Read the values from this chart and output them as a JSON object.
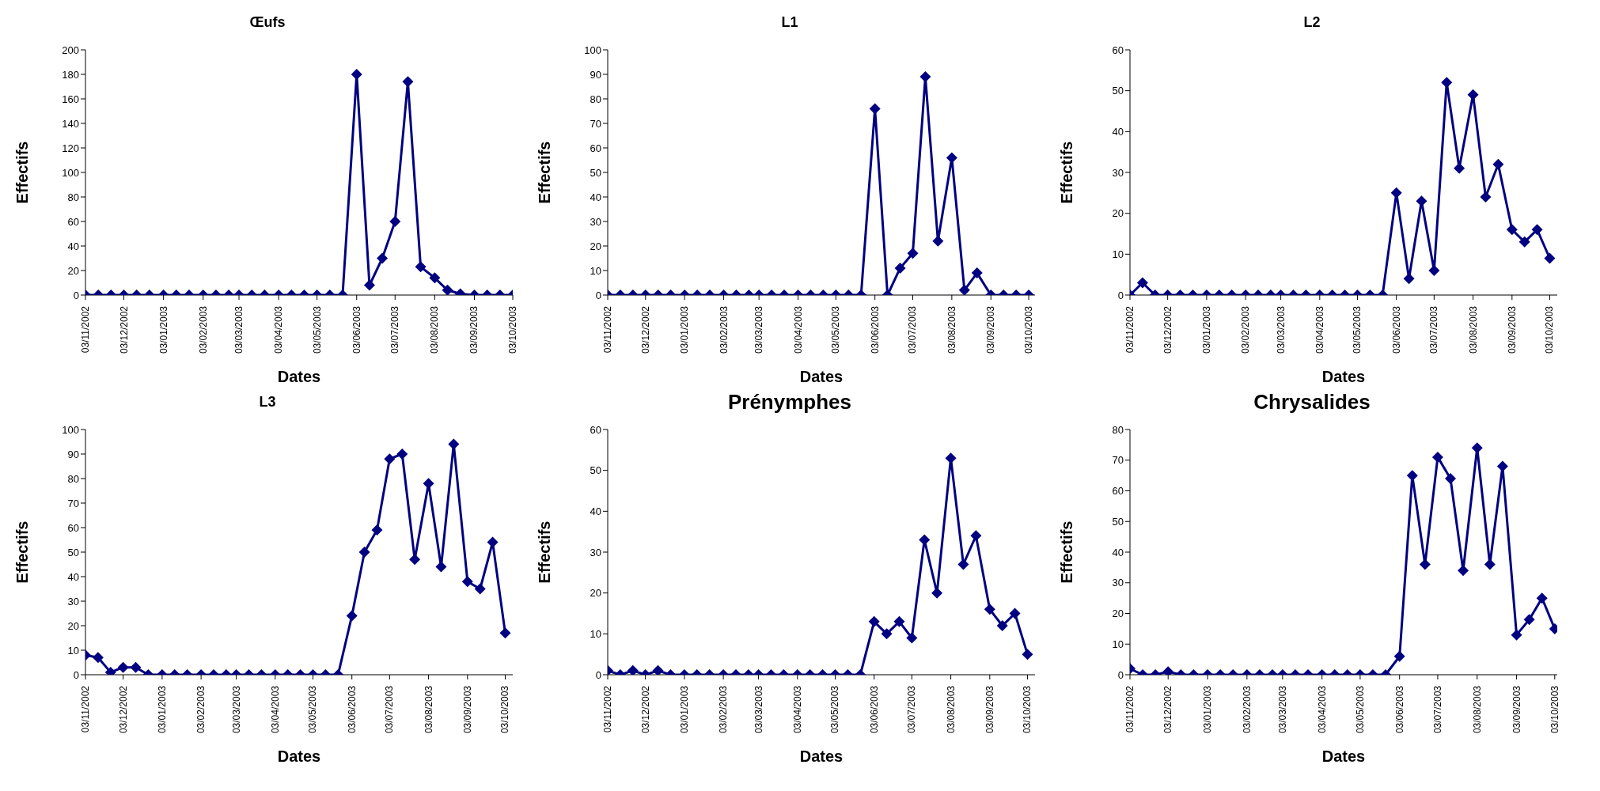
{
  "chart_data": [
    {
      "type": "line",
      "title": "Œufs",
      "xlabel": "Dates",
      "ylabel": "Effectifs",
      "color": "#000080",
      "marker": "diamond",
      "line_style": "solid",
      "grid": false,
      "legend": false,
      "x": [
        "2002-11-03",
        "2002-11-13",
        "2002-11-23",
        "2002-12-03",
        "2002-12-13",
        "2002-12-23",
        "2003-01-03",
        "2003-01-13",
        "2003-01-23",
        "2003-02-03",
        "2003-02-13",
        "2003-02-23",
        "2003-03-03",
        "2003-03-13",
        "2003-03-23",
        "2003-04-03",
        "2003-04-13",
        "2003-04-23",
        "2003-05-03",
        "2003-05-13",
        "2003-05-23",
        "2003-06-03",
        "2003-06-13",
        "2003-06-23",
        "2003-07-03",
        "2003-07-13",
        "2003-07-23",
        "2003-08-03",
        "2003-08-13",
        "2003-08-23",
        "2003-09-03",
        "2003-09-13",
        "2003-09-23",
        "2003-10-03"
      ],
      "values": [
        0,
        0,
        0,
        0,
        0,
        0,
        0,
        0,
        0,
        0,
        0,
        0,
        0,
        0,
        0,
        0,
        0,
        0,
        0,
        0,
        0,
        180,
        8,
        30,
        60,
        174,
        23,
        14,
        4,
        1,
        0,
        0,
        0,
        0
      ],
      "xlim": [
        "2002-11-03",
        "2003-10-03"
      ],
      "xticks": [
        {
          "value": "2002-11-03",
          "label": "03/11/2002"
        },
        {
          "value": "2002-12-03",
          "label": "03/12/2002"
        },
        {
          "value": "2003-01-03",
          "label": "03/01/2003"
        },
        {
          "value": "2003-02-03",
          "label": "03/02/2003"
        },
        {
          "value": "2003-03-03",
          "label": "03/03/2003"
        },
        {
          "value": "2003-04-03",
          "label": "03/04/2003"
        },
        {
          "value": "2003-05-03",
          "label": "03/05/2003"
        },
        {
          "value": "2003-06-03",
          "label": "03/06/2003"
        },
        {
          "value": "2003-07-03",
          "label": "03/07/2003"
        },
        {
          "value": "2003-08-03",
          "label": "03/08/2003"
        },
        {
          "value": "2003-09-03",
          "label": "03/09/2003"
        },
        {
          "value": "2003-10-03",
          "label": "03/10/2003"
        }
      ],
      "ylim": [
        0,
        200
      ],
      "yticks": [
        0,
        20,
        40,
        60,
        80,
        100,
        120,
        140,
        160,
        180,
        200
      ]
    },
    {
      "type": "line",
      "title": "L1",
      "xlabel": "Dates",
      "ylabel": "Effectifs",
      "color": "#000080",
      "marker": "diamond",
      "line_style": "solid",
      "grid": false,
      "legend": false,
      "x": [
        "2002-11-03",
        "2002-11-13",
        "2002-11-23",
        "2002-12-03",
        "2002-12-13",
        "2002-12-23",
        "2003-01-03",
        "2003-01-13",
        "2003-01-23",
        "2003-02-03",
        "2003-02-13",
        "2003-02-23",
        "2003-03-03",
        "2003-03-13",
        "2003-03-23",
        "2003-04-03",
        "2003-04-13",
        "2003-04-23",
        "2003-05-03",
        "2003-05-13",
        "2003-05-23",
        "2003-06-03",
        "2003-06-13",
        "2003-06-23",
        "2003-07-03",
        "2003-07-13",
        "2003-07-23",
        "2003-08-03",
        "2003-08-13",
        "2003-08-23",
        "2003-09-03",
        "2003-09-13",
        "2003-09-23",
        "2003-10-03"
      ],
      "values": [
        0,
        0,
        0,
        0,
        0,
        0,
        0,
        0,
        0,
        0,
        0,
        0,
        0,
        0,
        0,
        0,
        0,
        0,
        0,
        0,
        0,
        76,
        0,
        11,
        17,
        89,
        22,
        56,
        2,
        9,
        0,
        0,
        0,
        0
      ],
      "xlim": [
        "2002-11-03",
        "2003-10-08"
      ],
      "xticks": [
        {
          "value": "2002-11-03",
          "label": "03/11/2002"
        },
        {
          "value": "2002-12-03",
          "label": "03/12/2002"
        },
        {
          "value": "2003-01-03",
          "label": "03/01/2003"
        },
        {
          "value": "2003-02-03",
          "label": "03/02/2003"
        },
        {
          "value": "2003-03-03",
          "label": "03/03/2003"
        },
        {
          "value": "2003-04-03",
          "label": "03/04/2003"
        },
        {
          "value": "2003-05-03",
          "label": "03/05/2003"
        },
        {
          "value": "2003-06-03",
          "label": "03/06/2003"
        },
        {
          "value": "2003-07-03",
          "label": "03/07/2003"
        },
        {
          "value": "2003-08-03",
          "label": "03/08/2003"
        },
        {
          "value": "2003-09-03",
          "label": "03/09/2003"
        },
        {
          "value": "2003-10-03",
          "label": "03/10/2003"
        }
      ],
      "ylim": [
        0,
        100
      ],
      "yticks": [
        0,
        10,
        20,
        30,
        40,
        50,
        60,
        70,
        80,
        90,
        100
      ]
    },
    {
      "type": "line",
      "title": "L2",
      "xlabel": "Dates",
      "ylabel": "Effectifs",
      "color": "#000080",
      "marker": "diamond",
      "line_style": "solid",
      "grid": false,
      "legend": false,
      "x": [
        "2002-11-03",
        "2002-11-13",
        "2002-11-23",
        "2002-12-03",
        "2002-12-13",
        "2002-12-23",
        "2003-01-03",
        "2003-01-13",
        "2003-01-23",
        "2003-02-03",
        "2003-02-13",
        "2003-02-23",
        "2003-03-03",
        "2003-03-13",
        "2003-03-23",
        "2003-04-03",
        "2003-04-13",
        "2003-04-23",
        "2003-05-03",
        "2003-05-13",
        "2003-05-23",
        "2003-06-03",
        "2003-06-13",
        "2003-06-23",
        "2003-07-03",
        "2003-07-13",
        "2003-07-23",
        "2003-08-03",
        "2003-08-13",
        "2003-08-23",
        "2003-09-03",
        "2003-09-13",
        "2003-09-23",
        "2003-10-03"
      ],
      "values": [
        0,
        3,
        0,
        0,
        0,
        0,
        0,
        0,
        0,
        0,
        0,
        0,
        0,
        0,
        0,
        0,
        0,
        0,
        0,
        0,
        0,
        25,
        4,
        23,
        6,
        52,
        31,
        49,
        24,
        32,
        16,
        13,
        16,
        9
      ],
      "xlim": [
        "2002-11-03",
        "2003-10-09"
      ],
      "xticks": [
        {
          "value": "2002-11-03",
          "label": "03/11/2002"
        },
        {
          "value": "2002-12-03",
          "label": "03/12/2002"
        },
        {
          "value": "2003-01-03",
          "label": "03/01/2003"
        },
        {
          "value": "2003-02-03",
          "label": "03/02/2003"
        },
        {
          "value": "2003-03-03",
          "label": "03/03/2003"
        },
        {
          "value": "2003-04-03",
          "label": "03/04/2003"
        },
        {
          "value": "2003-05-03",
          "label": "03/05/2003"
        },
        {
          "value": "2003-06-03",
          "label": "03/06/2003"
        },
        {
          "value": "2003-07-03",
          "label": "03/07/2003"
        },
        {
          "value": "2003-08-03",
          "label": "03/08/2003"
        },
        {
          "value": "2003-09-03",
          "label": "03/09/2003"
        },
        {
          "value": "2003-10-03",
          "label": "03/10/2003"
        }
      ],
      "ylim": [
        0,
        60
      ],
      "yticks": [
        0,
        10,
        20,
        30,
        40,
        50,
        60
      ]
    },
    {
      "type": "line",
      "title": "L3",
      "xlabel": "Dates",
      "ylabel": "Effectifs",
      "color": "#000080",
      "marker": "diamond",
      "line_style": "solid",
      "grid": false,
      "legend": false,
      "x": [
        "2002-11-03",
        "2002-11-13",
        "2002-11-23",
        "2002-12-03",
        "2002-12-13",
        "2002-12-23",
        "2003-01-03",
        "2003-01-13",
        "2003-01-23",
        "2003-02-03",
        "2003-02-13",
        "2003-02-23",
        "2003-03-03",
        "2003-03-13",
        "2003-03-23",
        "2003-04-03",
        "2003-04-13",
        "2003-04-23",
        "2003-05-03",
        "2003-05-13",
        "2003-05-23",
        "2003-06-03",
        "2003-06-13",
        "2003-06-23",
        "2003-07-03",
        "2003-07-13",
        "2003-07-23",
        "2003-08-03",
        "2003-08-13",
        "2003-08-23",
        "2003-09-03",
        "2003-09-13",
        "2003-09-23",
        "2003-10-03"
      ],
      "values": [
        8,
        7,
        1,
        3,
        3,
        0,
        0,
        0,
        0,
        0,
        0,
        0,
        0,
        0,
        0,
        0,
        0,
        0,
        0,
        0,
        0,
        24,
        50,
        59,
        88,
        90,
        47,
        78,
        44,
        94,
        38,
        35,
        54,
        17
      ],
      "xlim": [
        "2002-11-03",
        "2003-10-09"
      ],
      "xticks": [
        {
          "value": "2002-11-03",
          "label": "03/11/2002"
        },
        {
          "value": "2002-12-03",
          "label": "03/12/2002"
        },
        {
          "value": "2003-01-03",
          "label": "03/01/2003"
        },
        {
          "value": "2003-02-03",
          "label": "03/02/2003"
        },
        {
          "value": "2003-03-03",
          "label": "03/03/2003"
        },
        {
          "value": "2003-04-03",
          "label": "03/04/2003"
        },
        {
          "value": "2003-05-03",
          "label": "03/05/2003"
        },
        {
          "value": "2003-06-03",
          "label": "03/06/2003"
        },
        {
          "value": "2003-07-03",
          "label": "03/07/2003"
        },
        {
          "value": "2003-08-03",
          "label": "03/08/2003"
        },
        {
          "value": "2003-09-03",
          "label": "03/09/2003"
        },
        {
          "value": "2003-10-03",
          "label": "03/10/2003"
        }
      ],
      "ylim": [
        0,
        100
      ],
      "yticks": [
        0,
        10,
        20,
        30,
        40,
        50,
        60,
        70,
        80,
        90,
        100
      ]
    },
    {
      "type": "line",
      "title": "Prénymphes",
      "xlabel": "Dates",
      "ylabel": "Effectifs",
      "color": "#000080",
      "marker": "diamond",
      "line_style": "solid",
      "grid": false,
      "legend": false,
      "x": [
        "2002-11-03",
        "2002-11-13",
        "2002-11-23",
        "2002-12-03",
        "2002-12-13",
        "2002-12-23",
        "2003-01-03",
        "2003-01-13",
        "2003-01-23",
        "2003-02-03",
        "2003-02-13",
        "2003-02-23",
        "2003-03-03",
        "2003-03-13",
        "2003-03-23",
        "2003-04-03",
        "2003-04-13",
        "2003-04-23",
        "2003-05-03",
        "2003-05-13",
        "2003-05-23",
        "2003-06-03",
        "2003-06-13",
        "2003-06-23",
        "2003-07-03",
        "2003-07-13",
        "2003-07-23",
        "2003-08-03",
        "2003-08-13",
        "2003-08-23",
        "2003-09-03",
        "2003-09-13",
        "2003-09-23",
        "2003-10-03"
      ],
      "values": [
        1,
        0,
        1,
        0,
        1,
        0,
        0,
        0,
        0,
        0,
        0,
        0,
        0,
        0,
        0,
        0,
        0,
        0,
        0,
        0,
        0,
        13,
        10,
        13,
        9,
        33,
        20,
        53,
        27,
        34,
        16,
        12,
        15,
        5
      ],
      "xlim": [
        "2002-11-03",
        "2003-10-09"
      ],
      "xticks": [
        {
          "value": "2002-11-03",
          "label": "03/11/2002"
        },
        {
          "value": "2002-12-03",
          "label": "03/12/2002"
        },
        {
          "value": "2003-01-03",
          "label": "03/01/2003"
        },
        {
          "value": "2003-02-03",
          "label": "03/02/2003"
        },
        {
          "value": "2003-03-03",
          "label": "03/03/2003"
        },
        {
          "value": "2003-04-03",
          "label": "03/04/2003"
        },
        {
          "value": "2003-05-03",
          "label": "03/05/2003"
        },
        {
          "value": "2003-06-03",
          "label": "03/06/2003"
        },
        {
          "value": "2003-07-03",
          "label": "03/07/2003"
        },
        {
          "value": "2003-08-03",
          "label": "03/08/2003"
        },
        {
          "value": "2003-09-03",
          "label": "03/09/2003"
        },
        {
          "value": "2003-10-03",
          "label": "03/10/2003"
        }
      ],
      "ylim": [
        0,
        60
      ],
      "yticks": [
        0,
        10,
        20,
        30,
        40,
        50,
        60
      ]
    },
    {
      "type": "line",
      "title": "Chrysalides",
      "xlabel": "Dates",
      "ylabel": "Effectifs",
      "color": "#000080",
      "marker": "diamond",
      "line_style": "solid",
      "grid": false,
      "legend": false,
      "x": [
        "2002-11-03",
        "2002-11-13",
        "2002-11-23",
        "2002-12-03",
        "2002-12-13",
        "2002-12-23",
        "2003-01-03",
        "2003-01-13",
        "2003-01-23",
        "2003-02-03",
        "2003-02-13",
        "2003-02-23",
        "2003-03-03",
        "2003-03-13",
        "2003-03-23",
        "2003-04-03",
        "2003-04-13",
        "2003-04-23",
        "2003-05-03",
        "2003-05-13",
        "2003-05-23",
        "2003-06-03",
        "2003-06-13",
        "2003-06-23",
        "2003-07-03",
        "2003-07-13",
        "2003-07-23",
        "2003-08-03",
        "2003-08-13",
        "2003-08-23",
        "2003-09-03",
        "2003-09-13",
        "2003-09-23",
        "2003-10-03"
      ],
      "values": [
        2,
        0,
        0,
        1,
        0,
        0,
        0,
        0,
        0,
        0,
        0,
        0,
        0,
        0,
        0,
        0,
        0,
        0,
        0,
        0,
        0,
        6,
        65,
        36,
        71,
        64,
        34,
        74,
        36,
        68,
        13,
        18,
        25,
        15
      ],
      "xlim": [
        "2002-11-03",
        "2003-10-05"
      ],
      "xticks": [
        {
          "value": "2002-11-03",
          "label": "03/11/2002"
        },
        {
          "value": "2002-12-03",
          "label": "03/12/2002"
        },
        {
          "value": "2003-01-03",
          "label": "03/01/2003"
        },
        {
          "value": "2003-02-03",
          "label": "03/02/2003"
        },
        {
          "value": "2003-03-03",
          "label": "03/03/2003"
        },
        {
          "value": "2003-04-03",
          "label": "03/04/2003"
        },
        {
          "value": "2003-05-03",
          "label": "03/05/2003"
        },
        {
          "value": "2003-06-03",
          "label": "03/06/2003"
        },
        {
          "value": "2003-07-03",
          "label": "03/07/2003"
        },
        {
          "value": "2003-08-03",
          "label": "03/08/2003"
        },
        {
          "value": "2003-09-03",
          "label": "03/09/2003"
        },
        {
          "value": "2003-10-03",
          "label": "03/10/2003"
        }
      ],
      "ylim": [
        0,
        80
      ],
      "yticks": [
        0,
        10,
        20,
        30,
        40,
        50,
        60,
        70,
        80
      ]
    }
  ]
}
